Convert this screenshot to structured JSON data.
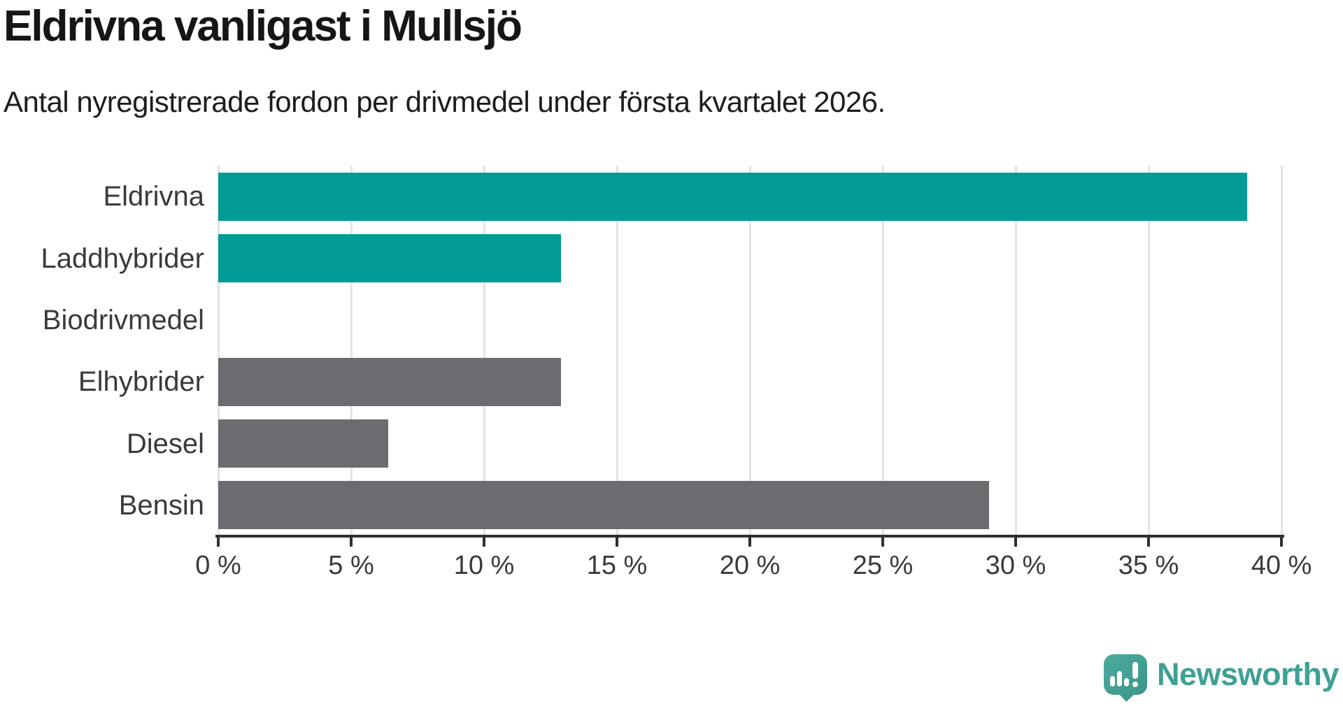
{
  "header": {
    "title": "Eldrivna vanligast i Mullsjö",
    "subtitle": "Antal nyregistrerade fordon per drivmedel under första kvartalet 2026."
  },
  "chart_data": {
    "type": "bar",
    "orientation": "horizontal",
    "title": "Eldrivna vanligast i Mullsjö",
    "subtitle": "Antal nyregistrerade fordon per drivmedel under första kvartalet 2026.",
    "categories": [
      "Eldrivna",
      "Laddhybrider",
      "Biodrivmedel",
      "Elhybrider",
      "Diesel",
      "Bensin"
    ],
    "values": [
      38.7,
      12.9,
      0,
      12.9,
      6.4,
      29
    ],
    "unit": "%",
    "xlim": [
      0,
      40
    ],
    "x_ticks": [
      0,
      5,
      10,
      15,
      20,
      25,
      30,
      35,
      40
    ],
    "x_tick_labels": [
      "0 %",
      "5 %",
      "10 %",
      "15 %",
      "20 %",
      "25 %",
      "30 %",
      "35 %",
      "40 %"
    ],
    "grid": true,
    "legend": false,
    "bar_colors": [
      "#009C95",
      "#009C95",
      "#6C6C70",
      "#6C6C70",
      "#6C6C70",
      "#6C6C70"
    ]
  },
  "colors": {
    "accent_teal": "#009C95",
    "neutral_gray": "#6C6C70",
    "axis": "#303030",
    "gridline": "#E4E4E4",
    "title_text": "#161616",
    "label_text": "#3A3A3A",
    "logo_teal": "#3FA095"
  },
  "branding": {
    "logo_text": "Newsworthy",
    "logo_icon": "newsworthy-bubble-chart-icon"
  }
}
